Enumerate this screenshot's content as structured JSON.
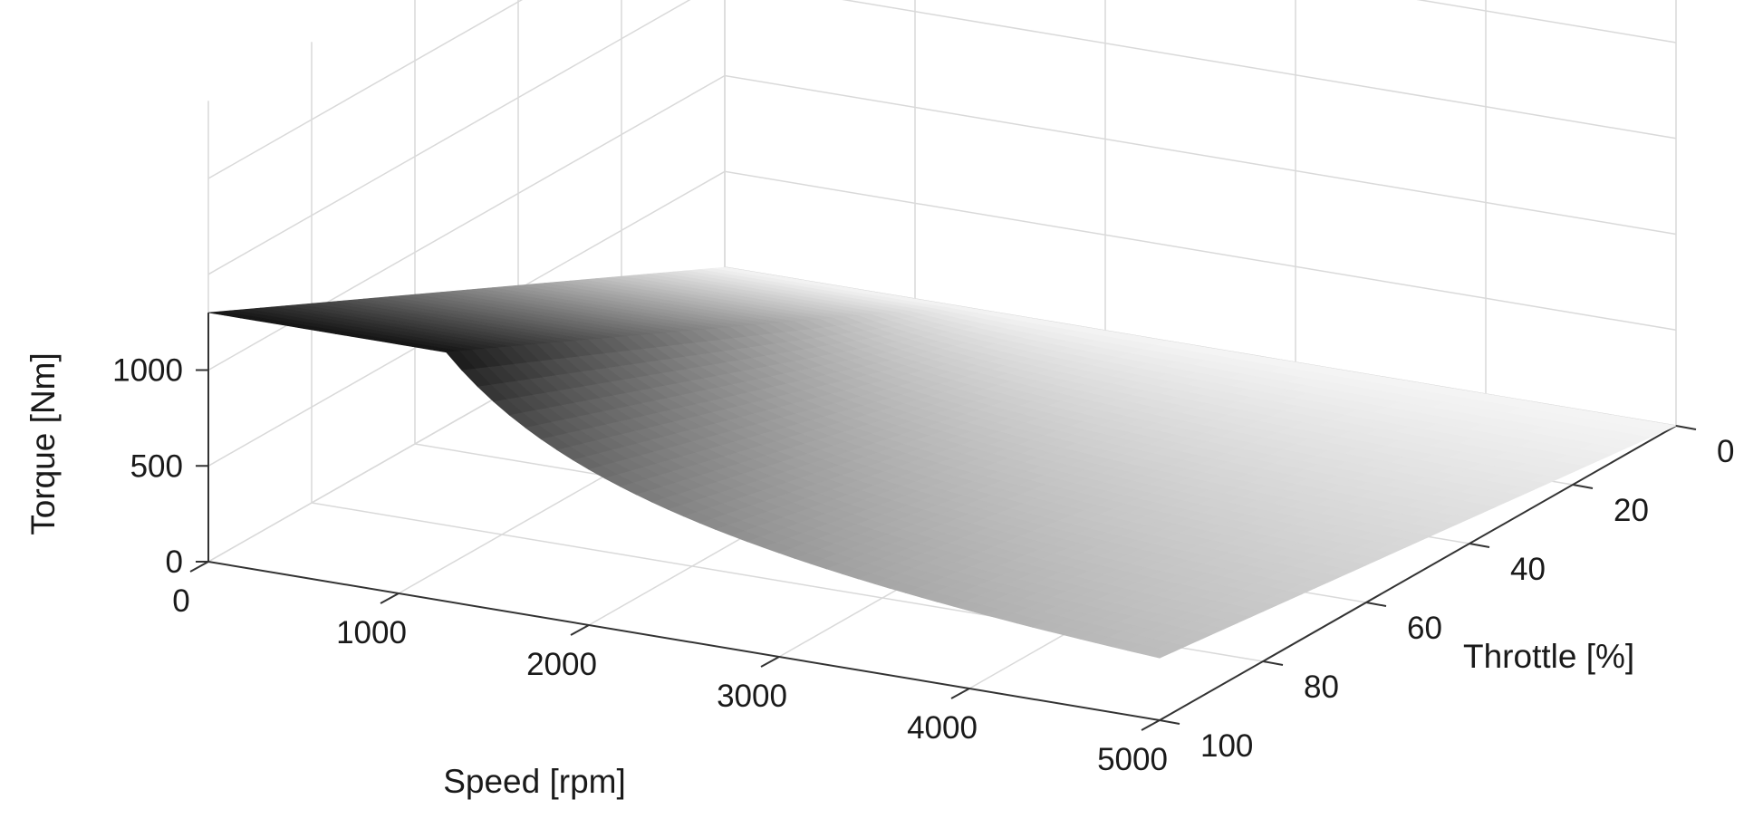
{
  "chart_data": {
    "type": "surface",
    "xlabel": "Speed [rpm]",
    "ylabel": "Throttle [%]",
    "zlabel": "Torque [Nm]",
    "xlim": [
      0,
      5000
    ],
    "ylim": [
      0,
      100
    ],
    "zlim": [
      0,
      1300
    ],
    "xticks": [
      "0",
      "1000",
      "2000",
      "3000",
      "4000",
      "5000"
    ],
    "yticks": [
      "0",
      "20",
      "40",
      "60",
      "80",
      "100"
    ],
    "zticks": [
      "0",
      "500",
      "1000"
    ],
    "grid": true,
    "colormap": "grayscale",
    "max_torque_nm": 1300,
    "base_speed_rpm": 1250,
    "region_below_base_speed": "constant torque",
    "region_above_base_speed": "torque decreases with speed (constant power)",
    "torque_scales_with_throttle": true
  }
}
